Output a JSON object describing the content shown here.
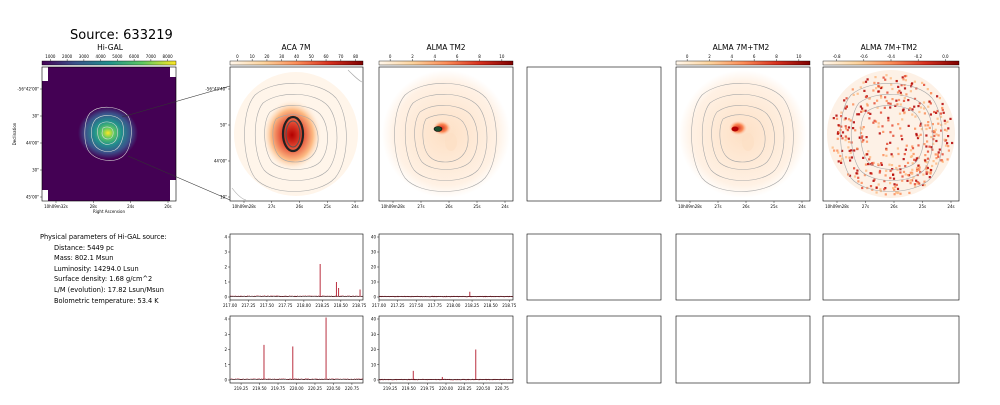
{
  "source_title": "Source: 633219",
  "params": {
    "heading": "Physical parameters of Hi-GAL source:",
    "lines": [
      "Distance: 5449 pc",
      "Mass: 802.1 Msun",
      "Luminosity: 14294.0 Lsun",
      "Surface density: 1.68 g/cm^2",
      "L/M (evolution): 17.82 Lsun/Msun",
      "Bolometric temperature: 53.4 K"
    ]
  },
  "colors": {
    "viridis": [
      "#440154",
      "#3b528b",
      "#21918c",
      "#5ec962",
      "#fde725"
    ],
    "orrd": [
      "#fff7ec",
      "#fdd49e",
      "#fc8d59",
      "#d7301f",
      "#7f0000"
    ],
    "spectrum": "#b2182b",
    "contour": "#9a9a9a",
    "axis": "#000000"
  },
  "chart_data": [
    {
      "type": "heatmap",
      "title": "Hi-GAL",
      "colorbar_ticks": [
        "1000",
        "2000",
        "3000",
        "4000",
        "5000",
        "6000",
        "7000",
        "8000"
      ],
      "colormap": "viridis",
      "xlabel": "Right Ascension",
      "ylabel": "Declination",
      "xticks": [
        "10h09m32s",
        "28s",
        "24s",
        "20s"
      ],
      "yticks": [
        "-56°42'00\"",
        "30\"",
        "44'00\"",
        "30\"",
        "45'00\""
      ]
    },
    {
      "type": "heatmap",
      "title": "ACA 7M",
      "colorbar_ticks": [
        "0",
        "10",
        "20",
        "30",
        "40",
        "50",
        "60",
        "70",
        "80"
      ],
      "colormap": "OrRd",
      "xticks": [
        "10h09m28s",
        "27s",
        "26s",
        "25s",
        "24s"
      ],
      "yticks": [
        "-56°43'40\"",
        "50\"",
        "44'00\"",
        "10\""
      ]
    },
    {
      "type": "heatmap",
      "title": "ALMA TM2",
      "colorbar_ticks": [
        "0",
        "2",
        "4",
        "6",
        "8",
        "10"
      ],
      "colormap": "OrRd",
      "xticks": [
        "10h09m28s",
        "27s",
        "26s",
        "25s",
        "24s"
      ]
    },
    {
      "type": "heatmap",
      "title": "",
      "empty": true
    },
    {
      "type": "heatmap",
      "title": "ALMA 7M+TM2",
      "colorbar_ticks": [
        "0",
        "2",
        "4",
        "6",
        "8",
        "10"
      ],
      "colormap": "OrRd",
      "xticks": [
        "10h09m28s",
        "27s",
        "26s",
        "25s",
        "24s"
      ]
    },
    {
      "type": "heatmap",
      "title": "ALMA 7M+TM2",
      "colorbar_ticks": [
        "-0.8",
        "-0.6",
        "-0.4",
        "-0.2",
        "0.0"
      ],
      "colormap": "OrRd",
      "xticks": [
        "10h09m28s",
        "27s",
        "26s",
        "25s",
        "24s"
      ]
    },
    {
      "type": "line",
      "title": "",
      "xlim": [
        217.0,
        218.8
      ],
      "ylim": [
        0,
        4
      ],
      "xticks": [
        "217.00",
        "217.25",
        "217.50",
        "217.75",
        "218.00",
        "218.25",
        "218.50",
        "218.75"
      ],
      "yticks": [
        "0",
        "1",
        "2",
        "3",
        "4"
      ],
      "baseline": 0.05,
      "peaks": [
        {
          "x": 218.22,
          "y": 2.2
        },
        {
          "x": 218.44,
          "y": 1.0
        },
        {
          "x": 218.47,
          "y": 0.6
        },
        {
          "x": 218.76,
          "y": 0.5
        }
      ]
    },
    {
      "type": "line",
      "title": "",
      "xlim": [
        217.0,
        218.8
      ],
      "ylim": [
        0,
        40
      ],
      "xticks": [
        "217.00",
        "217.25",
        "217.50",
        "217.75",
        "218.00",
        "218.25",
        "218.50",
        "218.75"
      ],
      "yticks": [
        "0",
        "10",
        "20",
        "30",
        "40"
      ],
      "baseline": 0.3,
      "peaks": [
        {
          "x": 218.22,
          "y": 3.5
        }
      ]
    },
    {
      "type": "line",
      "title": "",
      "xlim": [
        219.1,
        220.9
      ],
      "ylim": [
        0,
        4
      ],
      "xticks": [
        "219.25",
        "219.50",
        "219.75",
        "220.00",
        "220.25",
        "220.50",
        "220.75"
      ],
      "yticks": [
        "0",
        "1",
        "2",
        "3",
        "4"
      ],
      "baseline": 0.05,
      "peaks": [
        {
          "x": 219.56,
          "y": 2.3
        },
        {
          "x": 219.95,
          "y": 2.2
        },
        {
          "x": 220.4,
          "y": 4.1
        }
      ]
    },
    {
      "type": "line",
      "title": "",
      "xlim": [
        219.1,
        220.9
      ],
      "ylim": [
        0,
        40
      ],
      "xticks": [
        "219.25",
        "219.50",
        "219.75",
        "220.00",
        "220.25",
        "220.50",
        "220.75"
      ],
      "yticks": [
        "0",
        "10",
        "20",
        "30",
        "40"
      ],
      "baseline": 0.3,
      "peaks": [
        {
          "x": 219.56,
          "y": 6.0
        },
        {
          "x": 219.95,
          "y": 2.0
        },
        {
          "x": 220.4,
          "y": 20.0
        }
      ]
    }
  ]
}
